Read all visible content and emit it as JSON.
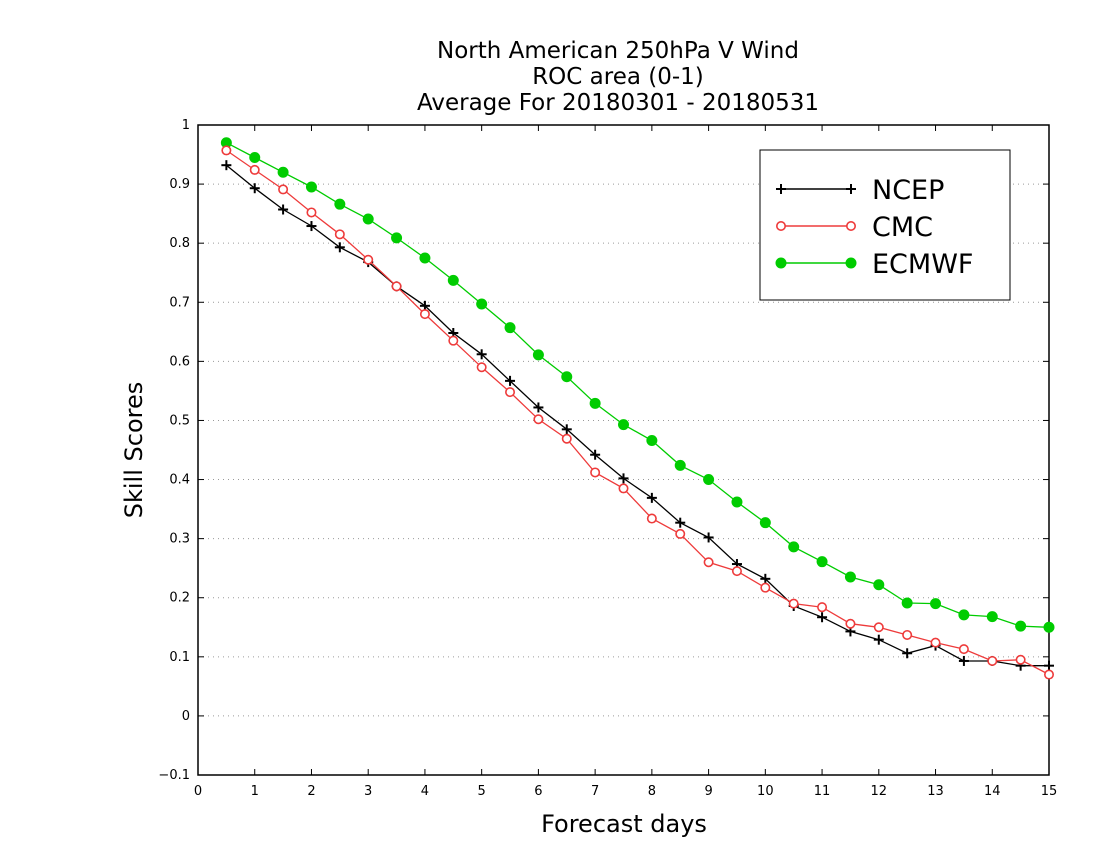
{
  "chart_data": {
    "type": "line",
    "title": [
      "North American 250hPa V Wind",
      "ROC area (0-1)",
      "Average For 20180301 - 20180531"
    ],
    "xlabel": "Forecast days",
    "ylabel": "Skill Scores",
    "xlim": [
      0,
      15
    ],
    "ylim": [
      -0.1,
      1
    ],
    "xticks": [
      "0",
      "1",
      "2",
      "3",
      "4",
      "5",
      "6",
      "7",
      "8",
      "9",
      "10",
      "11",
      "12",
      "13",
      "14",
      "15"
    ],
    "yticks": [
      "−0.1",
      "0",
      "0.1",
      "0.2",
      "0.3",
      "0.4",
      "0.5",
      "0.6",
      "0.7",
      "0.8",
      "0.9",
      "1"
    ],
    "grid": "horizontal-dotted",
    "legend_position": "top-right",
    "x": [
      0.5,
      1,
      1.5,
      2,
      2.5,
      3,
      3.5,
      4,
      4.5,
      5,
      5.5,
      6,
      6.5,
      7,
      7.5,
      8,
      8.5,
      9,
      9.5,
      10,
      10.5,
      11,
      11.5,
      12,
      12.5,
      13,
      13.5,
      14,
      14.5,
      15
    ],
    "series": [
      {
        "name": "NCEP",
        "color": "#000000",
        "marker": "plus",
        "values": [
          0.932,
          0.893,
          0.857,
          0.829,
          0.793,
          0.768,
          0.727,
          0.694,
          0.648,
          0.612,
          0.567,
          0.522,
          0.485,
          0.442,
          0.402,
          0.369,
          0.327,
          0.302,
          0.257,
          0.232,
          0.186,
          0.167,
          0.143,
          0.129,
          0.106,
          0.119,
          0.093,
          0.093,
          0.085,
          0.085
        ]
      },
      {
        "name": "CMC",
        "color": "#ee3b3b",
        "marker": "open-circle",
        "values": [
          0.957,
          0.924,
          0.891,
          0.852,
          0.815,
          0.772,
          0.727,
          0.68,
          0.635,
          0.59,
          0.548,
          0.502,
          0.469,
          0.412,
          0.385,
          0.334,
          0.308,
          0.26,
          0.245,
          0.217,
          0.19,
          0.184,
          0.156,
          0.15,
          0.137,
          0.124,
          0.113,
          0.093,
          0.095,
          0.07
        ]
      },
      {
        "name": "ECMWF",
        "color": "#00cc00",
        "marker": "filled-circle",
        "values": [
          0.97,
          0.945,
          0.92,
          0.895,
          0.866,
          0.841,
          0.809,
          0.775,
          0.737,
          0.697,
          0.657,
          0.611,
          0.574,
          0.529,
          0.493,
          0.466,
          0.424,
          0.4,
          0.362,
          0.327,
          0.286,
          0.261,
          0.235,
          0.222,
          0.191,
          0.19,
          0.171,
          0.168,
          0.152,
          0.15
        ]
      }
    ]
  }
}
